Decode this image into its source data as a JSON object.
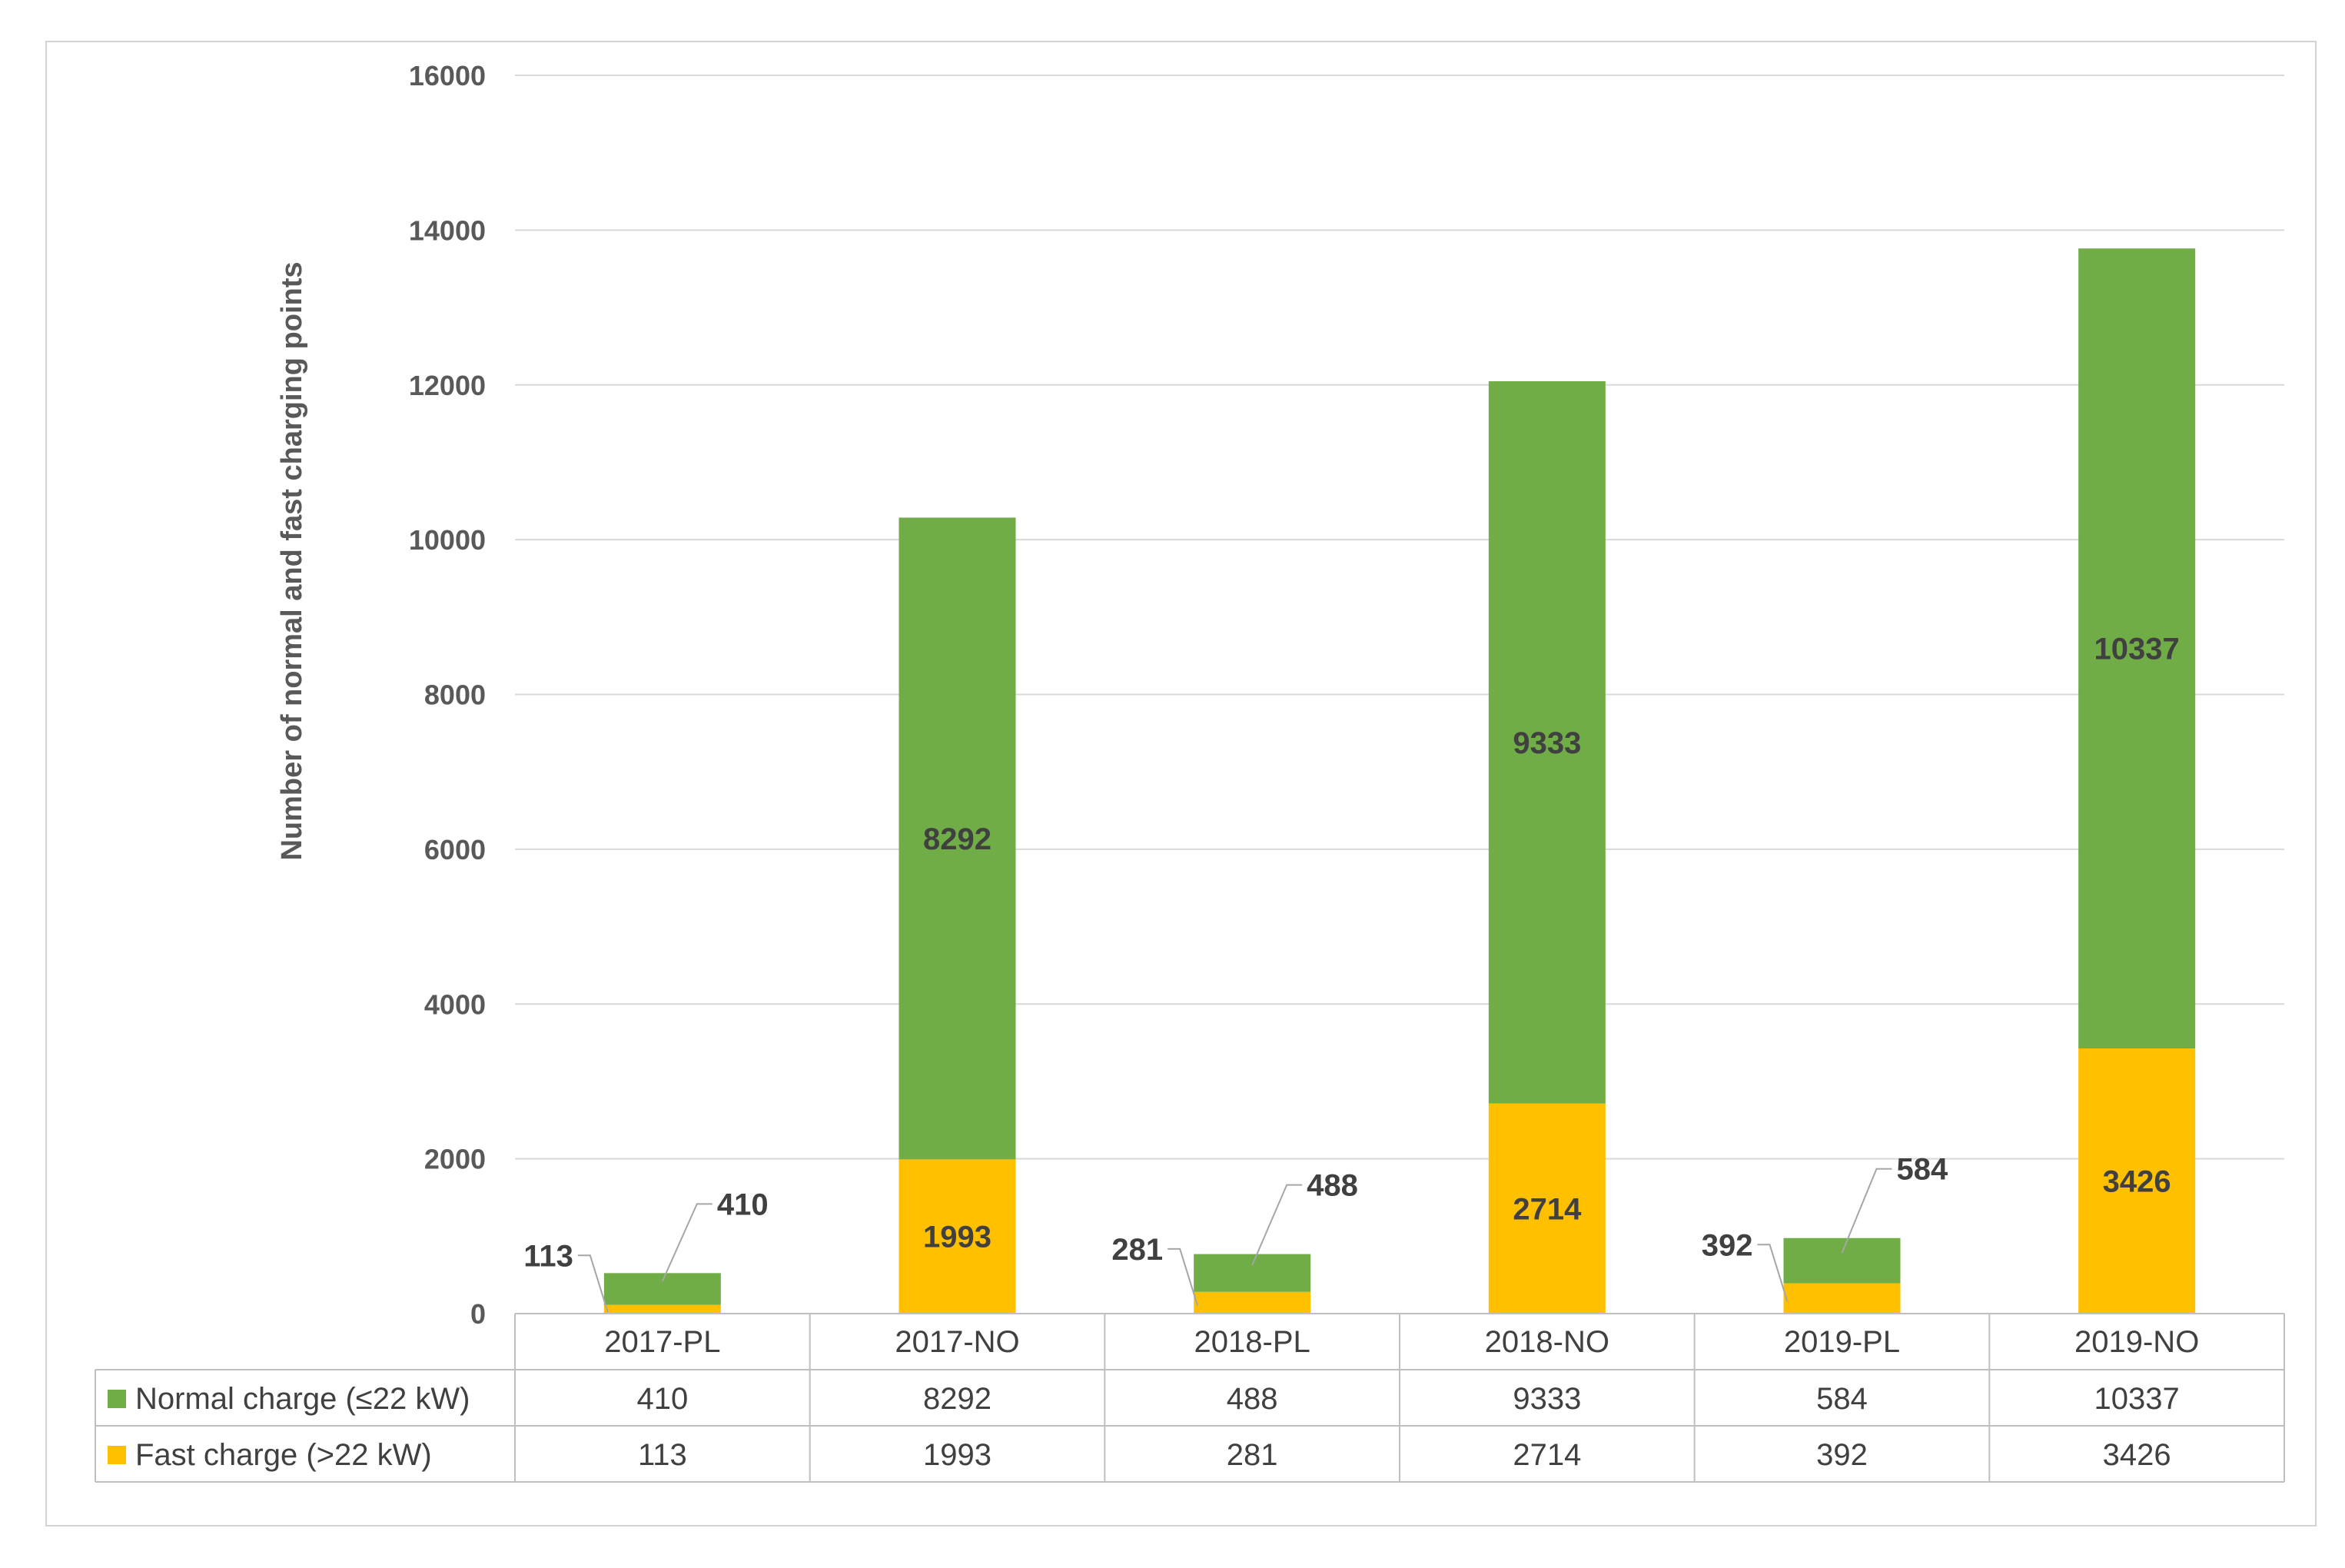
{
  "chart_data": {
    "type": "bar",
    "stacked": true,
    "categories": [
      "2017-PL",
      "2017-NO",
      "2018-PL",
      "2018-NO",
      "2019-PL",
      "2019-NO"
    ],
    "series": [
      {
        "name": "Fast charge (>22 kW)",
        "color": "#FFC000",
        "values": [
          113,
          1993,
          281,
          2714,
          392,
          3426
        ]
      },
      {
        "name": "Normal charge (≤22 kW)",
        "color": "#70AD47",
        "values": [
          410,
          8292,
          488,
          9333,
          584,
          10337
        ]
      }
    ],
    "table_rows": [
      {
        "label": "Normal charge (≤22 kW)",
        "color": "#70AD47",
        "values": [
          "410",
          "8292",
          "488",
          "9333",
          "584",
          "10337"
        ]
      },
      {
        "label": "Fast charge (>22 kW)",
        "color": "#FFC000",
        "values": [
          "113",
          "1993",
          "281",
          "2714",
          "392",
          "3426"
        ]
      }
    ],
    "ylabel": "Number of normal and fast charging points",
    "ylim": [
      0,
      16000
    ],
    "yticks": [
      "0",
      "2000",
      "4000",
      "6000",
      "8000",
      "10000",
      "12000",
      "14000",
      "16000"
    ],
    "grid": true,
    "legend": "data-table"
  }
}
